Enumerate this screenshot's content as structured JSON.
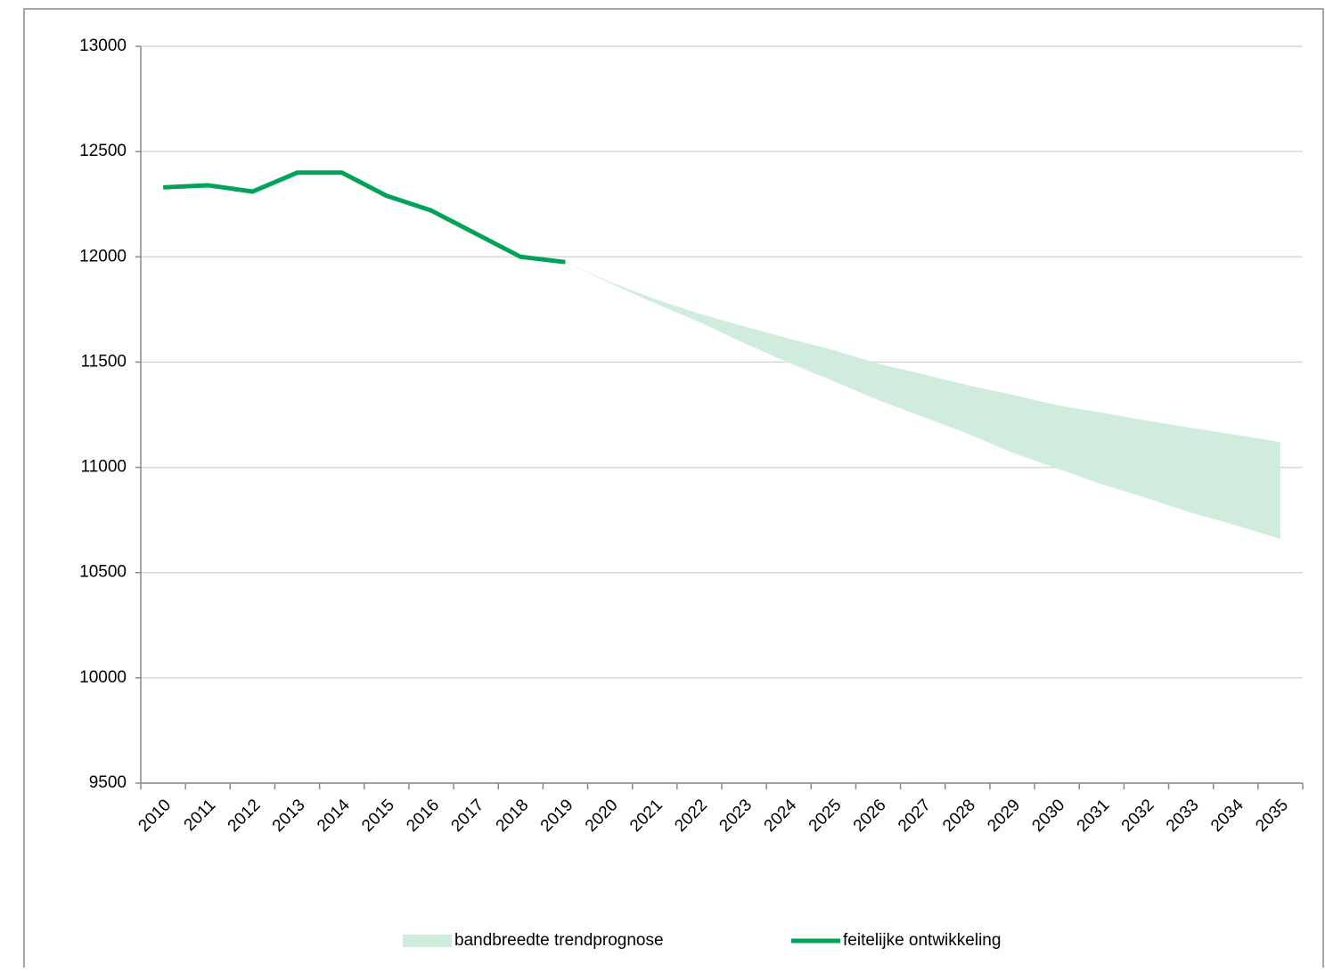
{
  "chart_data": {
    "type": "line",
    "categories": [
      "2010",
      "2011",
      "2012",
      "2013",
      "2014",
      "2015",
      "2016",
      "2017",
      "2018",
      "2019",
      "2020",
      "2021",
      "2022",
      "2023",
      "2024",
      "2025",
      "2026",
      "2027",
      "2028",
      "2029",
      "2030",
      "2031",
      "2032",
      "2033",
      "2034",
      "2035"
    ],
    "series": [
      {
        "name": "bandbreedte trendprognose",
        "color": "#d0ecdc",
        "low": [
          null,
          null,
          null,
          null,
          null,
          null,
          null,
          null,
          null,
          11975,
          11875,
          11780,
          11690,
          11590,
          11497,
          11410,
          11320,
          11240,
          11160,
          11070,
          10995,
          10920,
          10855,
          10785,
          10725,
          10660
        ],
        "high": [
          null,
          null,
          null,
          null,
          null,
          null,
          null,
          null,
          null,
          11975,
          11880,
          11800,
          11730,
          11670,
          11612,
          11557,
          11493,
          11442,
          11390,
          11345,
          11295,
          11260,
          11222,
          11188,
          11155,
          11120
        ]
      },
      {
        "name": "feitelijke ontwikkeling",
        "color": "#00a357",
        "values": [
          12330,
          12340,
          12310,
          12400,
          12400,
          12290,
          12220,
          12110,
          12000,
          11975,
          null,
          null,
          null,
          null,
          null,
          null,
          null,
          null,
          null,
          null,
          null,
          null,
          null,
          null,
          null,
          null
        ]
      }
    ],
    "ylim": [
      9500,
      13000
    ],
    "yticks": [
      9500,
      10000,
      10500,
      11000,
      11500,
      12000,
      12500,
      13000
    ],
    "grid": true,
    "legend": "bottom"
  }
}
